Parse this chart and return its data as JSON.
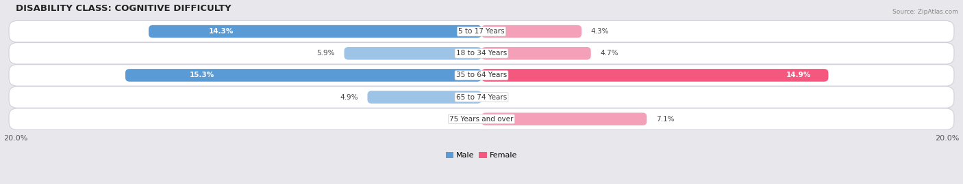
{
  "title": "DISABILITY CLASS: COGNITIVE DIFFICULTY",
  "source": "Source: ZipAtlas.com",
  "categories": [
    "5 to 17 Years",
    "18 to 34 Years",
    "35 to 64 Years",
    "65 to 74 Years",
    "75 Years and over"
  ],
  "male_values": [
    14.3,
    5.9,
    15.3,
    4.9,
    0.0
  ],
  "female_values": [
    4.3,
    4.7,
    14.9,
    0.0,
    7.1
  ],
  "male_color_strong": "#5b9bd5",
  "male_color_light": "#9dc3e6",
  "female_color_strong": "#f4587e",
  "female_color_light": "#f4a0b8",
  "strong_threshold": 10.0,
  "x_max": 20.0,
  "background_color": "#e8e8ec",
  "row_bg_color": "#f2f2f6",
  "title_fontsize": 9.5,
  "label_fontsize": 7.5,
  "tick_fontsize": 8,
  "category_fontsize": 7.5,
  "bar_height": 0.58,
  "figsize": [
    14.06,
    2.7
  ],
  "dpi": 100
}
